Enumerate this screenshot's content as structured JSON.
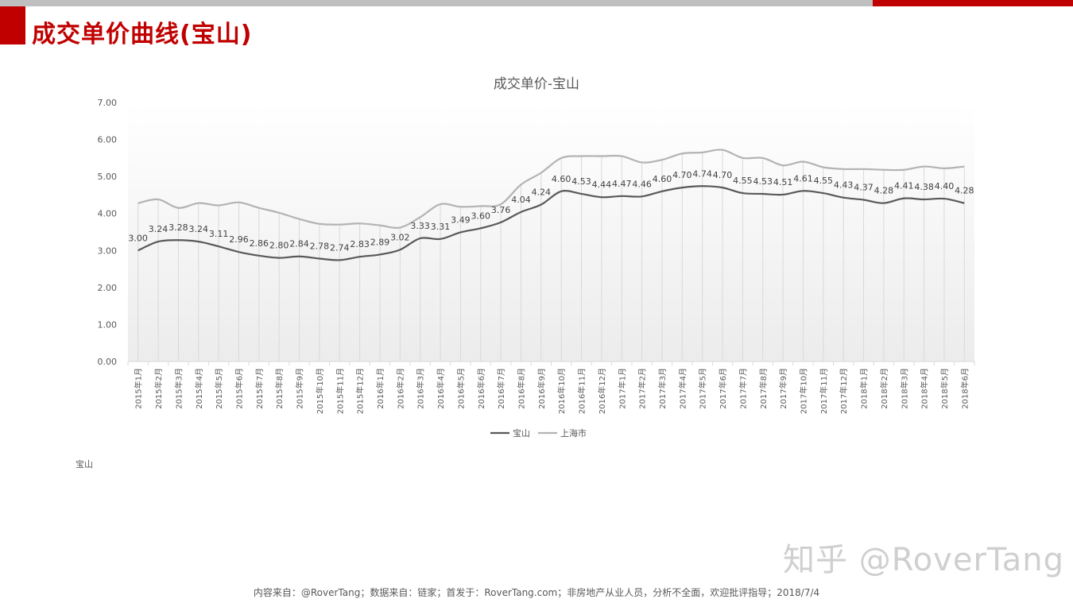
{
  "header": {
    "title": "成交单价曲线(宝山)"
  },
  "note": "宝山",
  "watermark": "知乎 @RoverTang",
  "footer": "内容来自：@RoverTang；数据来自：链家；首发于：RoverTang.com；非房地产从业人员，分析不全面，欢迎批评指导；2018/7/4",
  "colors": {
    "accent": "#c00000",
    "series_baoshan": "#595959",
    "series_shanghai": "#b3b3b3"
  },
  "chart_data": {
    "type": "line",
    "title": "成交单价-宝山",
    "ylim": [
      0,
      7
    ],
    "yticks": [
      "0.00",
      "1.00",
      "2.00",
      "3.00",
      "4.00",
      "5.00",
      "6.00",
      "7.00"
    ],
    "legend_position": "bottom",
    "categories": [
      "2015年1月",
      "2015年2月",
      "2015年3月",
      "2015年4月",
      "2015年5月",
      "2015年6月",
      "2015年7月",
      "2015年8月",
      "2015年9月",
      "2015年10月",
      "2015年11月",
      "2015年12月",
      "2016年1月",
      "2016年2月",
      "2016年3月",
      "2016年4月",
      "2016年5月",
      "2016年6月",
      "2016年7月",
      "2016年8月",
      "2016年9月",
      "2016年10月",
      "2016年11月",
      "2016年12月",
      "2017年1月",
      "2017年2月",
      "2017年3月",
      "2017年4月",
      "2017年5月",
      "2017年6月",
      "2017年7月",
      "2017年8月",
      "2017年9月",
      "2017年10月",
      "2017年11月",
      "2017年12月",
      "2018年1月",
      "2018年2月",
      "2018年3月",
      "2018年4月",
      "2018年5月",
      "2018年6月"
    ],
    "series": [
      {
        "name": "宝山",
        "labels": true,
        "values": [
          3.0,
          3.24,
          3.28,
          3.24,
          3.11,
          2.96,
          2.86,
          2.8,
          2.84,
          2.78,
          2.74,
          2.83,
          2.89,
          3.02,
          3.33,
          3.31,
          3.49,
          3.6,
          3.76,
          4.04,
          4.24,
          4.6,
          4.53,
          4.44,
          4.47,
          4.46,
          4.6,
          4.7,
          4.74,
          4.7,
          4.55,
          4.53,
          4.51,
          4.61,
          4.55,
          4.43,
          4.37,
          4.28,
          4.41,
          4.38,
          4.4,
          4.28
        ]
      },
      {
        "name": "上海市",
        "labels": false,
        "values": [
          4.28,
          4.38,
          4.15,
          4.28,
          4.22,
          4.3,
          4.15,
          4.02,
          3.85,
          3.72,
          3.7,
          3.73,
          3.68,
          3.62,
          3.9,
          4.25,
          4.18,
          4.2,
          4.25,
          4.78,
          5.1,
          5.5,
          5.55,
          5.55,
          5.55,
          5.38,
          5.45,
          5.62,
          5.65,
          5.72,
          5.5,
          5.5,
          5.3,
          5.4,
          5.25,
          5.2,
          5.2,
          5.18,
          5.18,
          5.27,
          5.22,
          5.27
        ]
      }
    ]
  }
}
